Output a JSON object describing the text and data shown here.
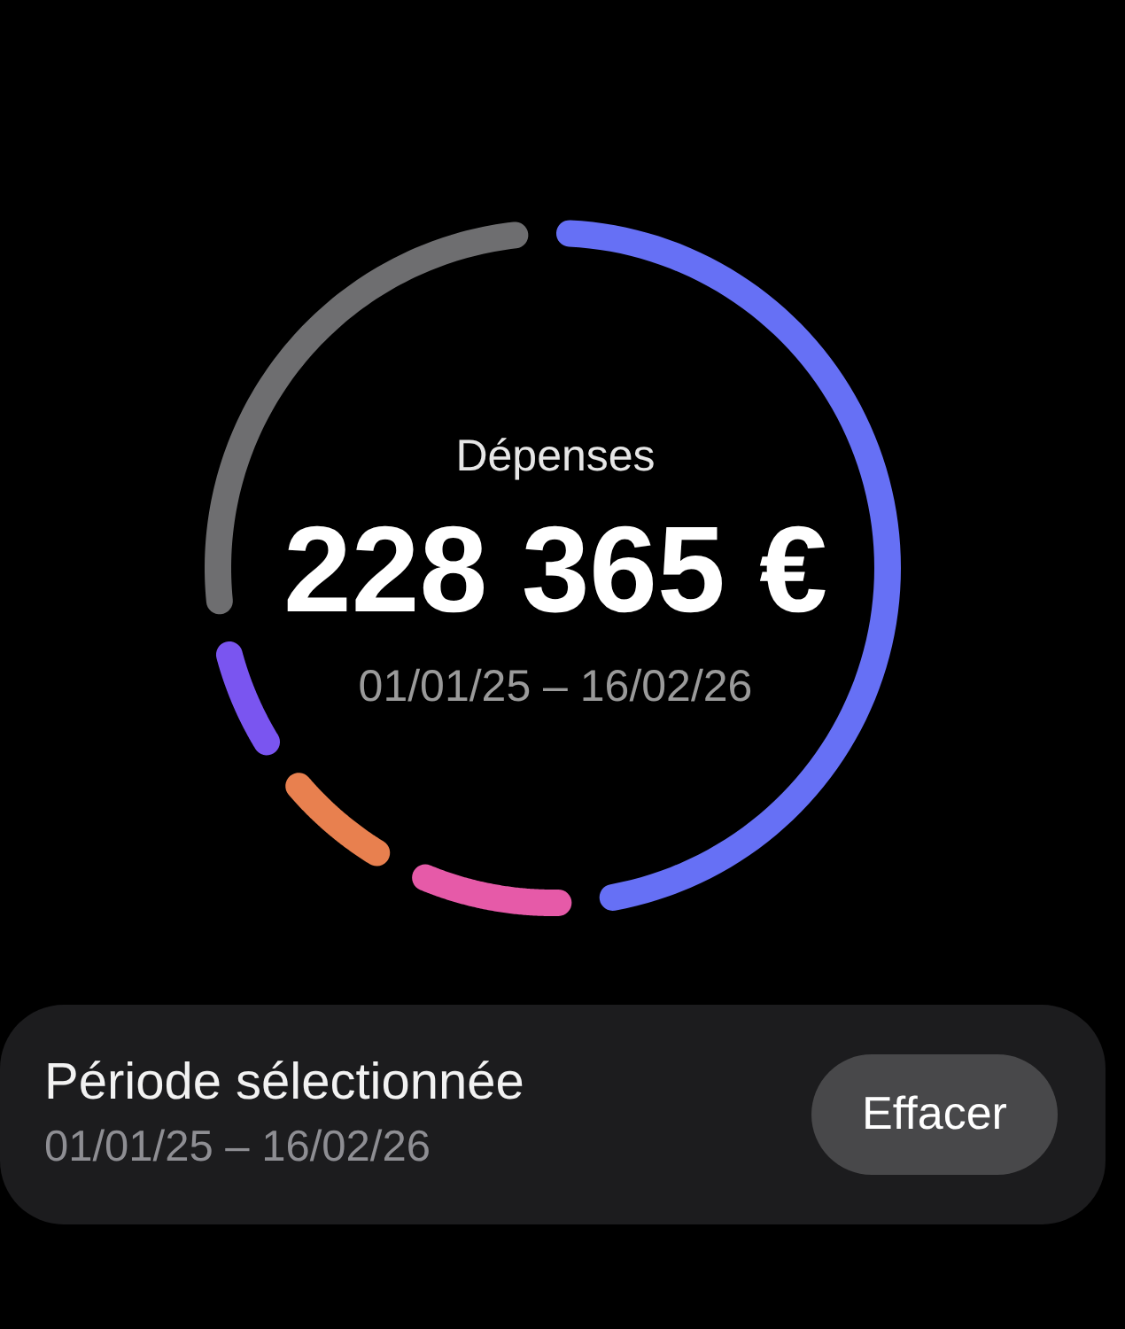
{
  "chart_data": {
    "type": "donut",
    "title": "Dépenses",
    "subtitle": "01/01/25 – 16/02/26",
    "categories": [
      null,
      null,
      null,
      null,
      null
    ],
    "values": [
      51,
      8.3,
      6.6,
      6.2,
      27.9
    ],
    "colors": [
      "#6670f5",
      "#e65aa8",
      "#e8804f",
      "#7a55f0",
      "#6e6e70"
    ],
    "annotations": [
      "228 365 €",
      "Période sélectionnée",
      "01/01/25 – 16/02/26",
      "Effacer"
    ]
  }
}
